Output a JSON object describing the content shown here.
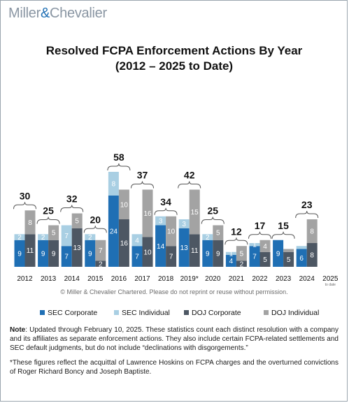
{
  "brand": {
    "left": "Miller",
    "amp": "&",
    "right": "Chevalier"
  },
  "chart_data": {
    "type": "bar",
    "stacked": true,
    "title": "Resolved FCPA Enforcement Actions By Year",
    "subtitle": "(2012 – 2025 to Date)",
    "categories": [
      "2012",
      "2013",
      "2014",
      "2015",
      "2016",
      "2017",
      "2018",
      "2019*",
      "2020",
      "2021",
      "2022",
      "2023",
      "2024",
      "2025"
    ],
    "todate_label": "to date",
    "totals": [
      30,
      25,
      32,
      20,
      58,
      37,
      34,
      42,
      25,
      12,
      17,
      15,
      23,
      null
    ],
    "series": [
      {
        "name": "SEC Corporate",
        "values": [
          9,
          9,
          7,
          9,
          24,
          7,
          14,
          13,
          9,
          4,
          7,
          9,
          6,
          0
        ],
        "labels": [
          "9",
          "9",
          "7",
          "9",
          "24",
          "7",
          "14",
          "13",
          "9",
          "4",
          "7",
          "9",
          "6",
          ""
        ]
      },
      {
        "name": "SEC Individual",
        "values": [
          2,
          2,
          7,
          2,
          8,
          4,
          3,
          3,
          2,
          1,
          1,
          0,
          1,
          0
        ],
        "labels": [
          "2",
          "2",
          "7",
          "2",
          "8",
          "4",
          "3",
          "3",
          "2",
          "1",
          "1",
          "",
          "",
          ""
        ]
      },
      {
        "name": "DOJ Corporate",
        "values": [
          11,
          9,
          13,
          2,
          16,
          10,
          7,
          11,
          9,
          2,
          5,
          5,
          8,
          0
        ],
        "labels": [
          "11",
          "9",
          "13",
          "2",
          "16",
          "10",
          "7",
          "11",
          "9",
          "2",
          "5",
          "5",
          "8",
          ""
        ]
      },
      {
        "name": "DOJ Individual",
        "values": [
          8,
          5,
          5,
          7,
          10,
          16,
          10,
          15,
          5,
          5,
          4,
          1,
          8,
          0
        ],
        "labels": [
          "8",
          "5",
          "5",
          "7",
          "10",
          "16",
          "10",
          "15",
          "5",
          "5",
          "4",
          "",
          "8",
          ""
        ]
      }
    ],
    "colors": [
      "#1f6fb4",
      "#a9cfe3",
      "#4d5763",
      "#a3a3a3"
    ],
    "copyright": "© Miller & Chevalier Chartered. Please do not reprint or reuse without permission."
  },
  "notes": {
    "note_label": "Note",
    "note_text": ": Updated through February 10, 2025. These statistics count each distinct resolution with a company and its affiliates as separate enforcement actions. They also include certain FCPA-related settlements and SEC default judgments, but do not include “declinations with disgorgements.”",
    "footnote": "*These figures reflect the acquittal of Lawrence Hoskins on FCPA charges and the overturned convictions of Roger Richard Boncy and Joseph Baptiste."
  }
}
